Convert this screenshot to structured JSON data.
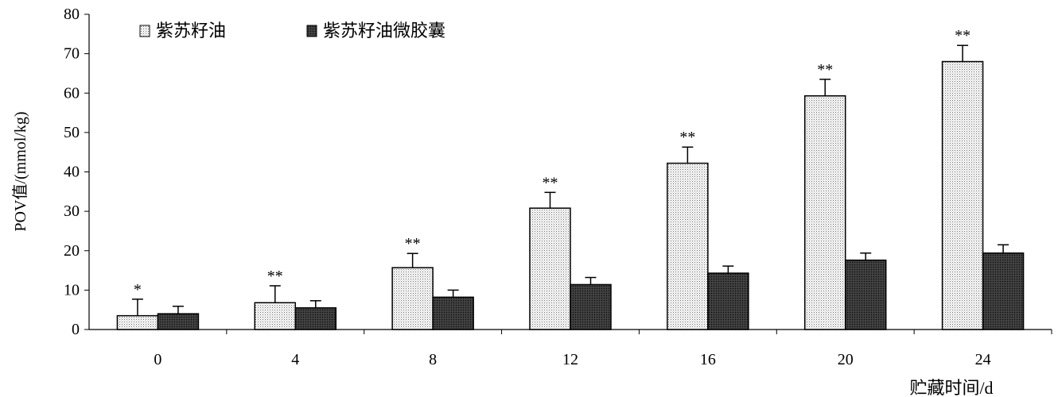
{
  "chart_data": {
    "type": "bar",
    "categories": [
      "0",
      "4",
      "8",
      "12",
      "16",
      "20",
      "24"
    ],
    "series": [
      {
        "name": "紫苏籽油",
        "values": [
          3.5,
          6.8,
          15.7,
          30.8,
          42.2,
          59.3,
          68.0
        ],
        "errors": [
          4.2,
          4.3,
          3.6,
          4.0,
          4.1,
          4.2,
          4.1
        ],
        "significance": [
          "*",
          "**",
          "**",
          "**",
          "**",
          "**",
          "**"
        ],
        "pattern": "light-dotted"
      },
      {
        "name": "紫苏籽油微胶囊",
        "values": [
          4.0,
          5.5,
          8.2,
          11.4,
          14.3,
          17.6,
          19.4
        ],
        "errors": [
          1.9,
          1.8,
          1.8,
          1.8,
          1.8,
          1.8,
          2.1
        ],
        "pattern": "dark-crosshatch"
      }
    ],
    "xlabel": "贮藏时间/d",
    "ylabel": "POV值/(mmol/kg)",
    "ylim": [
      0,
      80
    ],
    "yticks": [
      0,
      10,
      20,
      30,
      40,
      50,
      60,
      70,
      80
    ],
    "grid": false,
    "legend_position": "top-left"
  }
}
